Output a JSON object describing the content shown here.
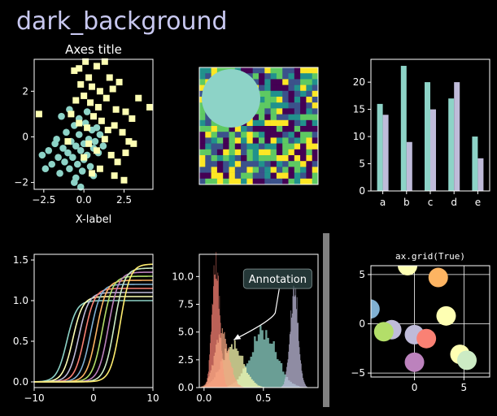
{
  "figure": {
    "title": "dark_background",
    "title_color": "#c8c8f0",
    "background": "#000000",
    "fg": "#ffffff",
    "palette": [
      "#8dd3c7",
      "#feffb3",
      "#bfbbd9",
      "#fa8174",
      "#81b1d2",
      "#fdb462",
      "#b3de69",
      "#bc82bd",
      "#ccebc4",
      "#ffed6f"
    ]
  },
  "chart_data": [
    {
      "type": "scatter",
      "title": "Axes title",
      "xlabel": "X-label",
      "ylabel": "",
      "xlim": [
        -3.1,
        4.3
      ],
      "ylim": [
        -2.3,
        3.4
      ],
      "xticks": [
        -2.5,
        0,
        2.5
      ],
      "xtick_labels": [
        "−2.5",
        "0.0",
        "2.5"
      ],
      "yticks": [
        -2,
        0,
        2
      ],
      "ytick_labels": [
        "−2",
        "0",
        "2"
      ],
      "series": [
        {
          "marker": "circle",
          "color": "#8dd3c7",
          "points": [
            [
              -2.6,
              -0.8
            ],
            [
              -2.2,
              -0.6
            ],
            [
              -2.0,
              -1.2
            ],
            [
              -1.8,
              -0.3
            ],
            [
              -1.6,
              -0.9
            ],
            [
              -1.5,
              -1.6
            ],
            [
              -1.3,
              -0.5
            ],
            [
              -1.2,
              -1.1
            ],
            [
              -1.1,
              0.2
            ],
            [
              -1.0,
              -0.7
            ],
            [
              -0.9,
              -1.4
            ],
            [
              -0.8,
              -0.2
            ],
            [
              -0.7,
              -0.9
            ],
            [
              -0.6,
              0.5
            ],
            [
              -0.5,
              -0.4
            ],
            [
              -0.5,
              -1.8
            ],
            [
              -0.4,
              -1.2
            ],
            [
              -0.3,
              0.1
            ],
            [
              -0.2,
              -0.6
            ],
            [
              -0.1,
              -1.5
            ],
            [
              0.0,
              -0.3
            ],
            [
              0.0,
              -1.0
            ],
            [
              0.1,
              0.6
            ],
            [
              0.2,
              -0.8
            ],
            [
              0.3,
              -0.1
            ],
            [
              0.4,
              -1.3
            ],
            [
              0.5,
              0.3
            ],
            [
              0.6,
              -0.5
            ],
            [
              0.7,
              -0.2
            ],
            [
              0.8,
              0.4
            ],
            [
              0.9,
              -0.7
            ],
            [
              1.0,
              0.1
            ],
            [
              1.2,
              -0.4
            ],
            [
              -1.4,
              0.9
            ],
            [
              -0.9,
              1.2
            ],
            [
              -0.3,
              0.8
            ],
            [
              0.2,
              1.1
            ],
            [
              -1.7,
              -0.1
            ],
            [
              -2.4,
              -1.4
            ],
            [
              -0.6,
              -2.0
            ],
            [
              -0.2,
              -2.2
            ],
            [
              0.6,
              -1.7
            ]
          ]
        },
        {
          "marker": "square",
          "color": "#feffb3",
          "points": [
            [
              -0.6,
              2.9
            ],
            [
              -0.3,
              3.0
            ],
            [
              0.1,
              3.3
            ],
            [
              0.3,
              2.6
            ],
            [
              0.8,
              3.1
            ],
            [
              1.3,
              3.3
            ],
            [
              1.6,
              2.6
            ],
            [
              -0.2,
              2.3
            ],
            [
              0.5,
              2.2
            ],
            [
              1.0,
              2.0
            ],
            [
              1.8,
              2.1
            ],
            [
              2.2,
              2.4
            ],
            [
              -0.5,
              1.6
            ],
            [
              0.0,
              1.8
            ],
            [
              0.4,
              1.5
            ],
            [
              0.9,
              1.3
            ],
            [
              1.4,
              1.7
            ],
            [
              2.0,
              1.2
            ],
            [
              2.6,
              1.1
            ],
            [
              3.0,
              0.8
            ],
            [
              -0.8,
              1.0
            ],
            [
              -0.3,
              0.6
            ],
            [
              0.2,
              0.4
            ],
            [
              0.6,
              0.9
            ],
            [
              1.1,
              0.7
            ],
            [
              1.5,
              0.3
            ],
            [
              1.9,
              0.5
            ],
            [
              2.4,
              0.2
            ],
            [
              2.8,
              -0.2
            ],
            [
              0.3,
              -0.3
            ],
            [
              0.8,
              -0.6
            ],
            [
              1.3,
              -0.1
            ],
            [
              1.7,
              -0.8
            ],
            [
              2.1,
              -1.1
            ],
            [
              2.6,
              -0.7
            ],
            [
              3.1,
              -0.3
            ],
            [
              4.1,
              1.3
            ],
            [
              -2.8,
              1.0
            ],
            [
              -1.0,
              -0.2
            ],
            [
              0.0,
              -0.9
            ],
            [
              1.0,
              -1.4
            ],
            [
              1.9,
              -1.7
            ],
            [
              2.5,
              -1.9
            ],
            [
              0.5,
              -1.6
            ],
            [
              3.4,
              1.7
            ]
          ]
        }
      ]
    },
    {
      "type": "heatmap",
      "title": "",
      "rows": 20,
      "cols": 20,
      "colormap": "viridis",
      "overlay": "circle",
      "overlay_color": "#8dd3c7"
    },
    {
      "type": "bar",
      "title": "",
      "categories": [
        "a",
        "b",
        "c",
        "d",
        "e"
      ],
      "ylim": [
        0,
        24.2
      ],
      "yticks": [
        0,
        5,
        10,
        15,
        20
      ],
      "series": [
        {
          "color": "#8dd3c7",
          "values": [
            16,
            23,
            20,
            17,
            10
          ]
        },
        {
          "color": "#bfbbd9",
          "values": [
            14,
            9,
            15,
            20,
            6
          ]
        }
      ]
    },
    {
      "type": "line",
      "title": "",
      "xlim": [
        -10,
        10
      ],
      "ylim": [
        -0.07,
        1.57
      ],
      "xticks": [
        -10,
        0,
        10
      ],
      "xtick_labels": [
        "−10",
        "0",
        "10"
      ],
      "yticks": [
        0.0,
        0.5,
        1.0,
        1.5
      ],
      "ytick_labels": [
        "0.0",
        "0.5",
        "1.0",
        "1.5"
      ],
      "series": [
        {
          "color": "#8dd3c7",
          "height": 1.0,
          "center": -4.5
        },
        {
          "color": "#feffb3",
          "height": 1.05,
          "center": -3.5
        },
        {
          "color": "#bfbbd9",
          "height": 1.1,
          "center": -2.5
        },
        {
          "color": "#fa8174",
          "height": 1.15,
          "center": -1.5
        },
        {
          "color": "#81b1d2",
          "height": 1.2,
          "center": -0.5
        },
        {
          "color": "#fdb462",
          "height": 1.25,
          "center": 0.5
        },
        {
          "color": "#b3de69",
          "height": 1.3,
          "center": 1.5
        },
        {
          "color": "#bc82bd",
          "height": 1.35,
          "center": 2.5
        },
        {
          "color": "#ccebc4",
          "height": 1.4,
          "center": 3.5
        },
        {
          "color": "#ffed6f",
          "height": 1.45,
          "center": 4.5
        }
      ]
    },
    {
      "type": "area",
      "title": "",
      "xlim": [
        -0.04,
        0.96
      ],
      "ylim": [
        0,
        12.0
      ],
      "xticks": [
        0.0,
        0.5
      ],
      "xtick_labels": [
        "0.0",
        "0.5"
      ],
      "yticks": [
        0.0,
        2.5,
        5.0,
        7.5,
        10.0
      ],
      "ytick_labels": [
        "0.0",
        "2.5",
        "5.0",
        "7.5",
        "10.0"
      ],
      "annotation": {
        "text": "Annotation",
        "xy": [
          0.25,
          4.3
        ],
        "xytext": [
          0.62,
          9.8
        ]
      },
      "histograms": [
        {
          "color": "#8dd3c7",
          "mean": 0.5,
          "sd": 0.11,
          "peak": 5.0
        },
        {
          "color": "#feffb3",
          "mean": 0.24,
          "sd": 0.09,
          "peak": 3.9
        },
        {
          "color": "#bfbbd9",
          "mean": 0.76,
          "sd": 0.035,
          "peak": 8.8
        },
        {
          "color": "#fa8174",
          "mean": 0.1,
          "sd": 0.032,
          "peak": 11.3
        },
        {
          "color": "#f5a582",
          "mean": 0.15,
          "sd": 0.06,
          "peak": 5.0
        }
      ]
    },
    {
      "type": "scatter",
      "title": "ax.grid(True)",
      "xlim": [
        -4.4,
        7.6
      ],
      "ylim": [
        -5.4,
        5.9
      ],
      "xticks": [
        0,
        5
      ],
      "xtick_labels": [
        "0",
        "5"
      ],
      "yticks": [
        -5,
        0,
        5
      ],
      "ytick_labels": [
        "−5",
        "0",
        "5"
      ],
      "grid": true,
      "series": [
        {
          "marker": "circle",
          "points": [
            [
              -0.7,
              5.9,
              "#feffb3"
            ],
            [
              2.4,
              4.7,
              "#fdb462"
            ],
            [
              -4.5,
              1.5,
              "#81b1d2"
            ],
            [
              3.2,
              0.8,
              "#feffb3"
            ],
            [
              -2.3,
              -0.6,
              "#bfbbd9"
            ],
            [
              -3.1,
              -0.8,
              "#b3de69"
            ],
            [
              0.0,
              -1.1,
              "#bfbbd9"
            ],
            [
              1.2,
              -1.5,
              "#fa8174"
            ],
            [
              0.0,
              -3.9,
              "#bc82bd"
            ],
            [
              4.6,
              -3.1,
              "#feffb3"
            ],
            [
              5.3,
              -3.7,
              "#ccebc4"
            ]
          ]
        }
      ]
    }
  ]
}
